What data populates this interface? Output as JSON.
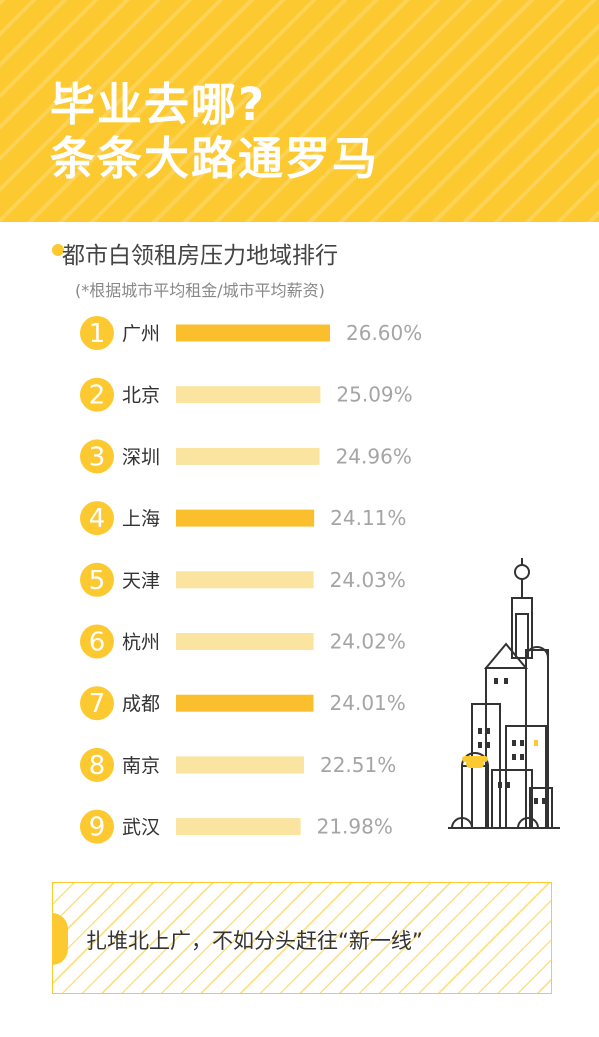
{
  "title": {
    "line1": "毕业去哪?",
    "line2": "条条大路通罗马"
  },
  "subtitle": "都市白领租房压力地域排行",
  "note": "(*根据城市平均租金/城市平均薪资)",
  "callout": "扎堆北上广，不如分头赶往“新一线”",
  "colors": {
    "accent": "#fcc930",
    "bar_dark": "#fbbf2e",
    "bar_light": "#fbe3a0",
    "value_text": "#a5a5a5"
  },
  "chart_data": {
    "type": "bar",
    "orientation": "horizontal",
    "ranks": [
      "1",
      "2",
      "3",
      "4",
      "5",
      "6",
      "7",
      "8",
      "9"
    ],
    "categories": [
      "广州",
      "北京",
      "深圳",
      "上海",
      "天津",
      "杭州",
      "成都",
      "南京",
      "武汉"
    ],
    "values": [
      26.6,
      25.09,
      24.96,
      24.11,
      24.03,
      24.02,
      24.01,
      22.51,
      21.98
    ],
    "value_labels": [
      "26.60%",
      "25.09%",
      "24.96%",
      "24.11%",
      "24.03%",
      "24.02%",
      "24.01%",
      "22.51%",
      "21.98%"
    ],
    "highlight": [
      true,
      false,
      false,
      true,
      false,
      false,
      true,
      false,
      false
    ],
    "unit": "%"
  }
}
